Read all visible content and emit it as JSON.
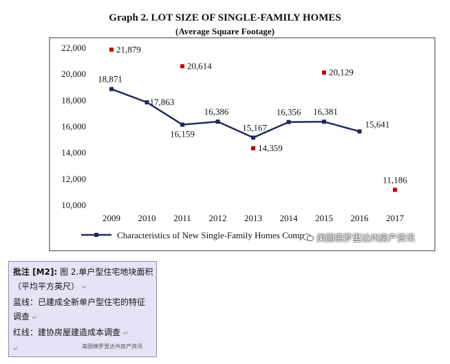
{
  "chart_data": {
    "type": "line",
    "title": "Graph 2. LOT SIZE OF SINGLE-FAMILY HOMES",
    "subtitle": "(Average Square Footage)",
    "categories": [
      "2009",
      "2010",
      "2011",
      "2012",
      "2013",
      "2014",
      "2015",
      "2016",
      "2017"
    ],
    "ylim": [
      10000,
      22000
    ],
    "yticks": [
      10000,
      12000,
      14000,
      16000,
      18000,
      20000,
      22000
    ],
    "ytick_labels": [
      "10,000",
      "12,000",
      "14,000",
      "16,000",
      "18,000",
      "20,000",
      "22,000"
    ],
    "grid": false,
    "legend_position": "bottom",
    "series": [
      {
        "name": "Characteristics of New Single-Family Homes Comp",
        "type": "line",
        "color": "#1f2a5e",
        "x": [
          "2009",
          "2010",
          "2011",
          "2012",
          "2013",
          "2014",
          "2015",
          "2016"
        ],
        "values": [
          18871,
          17863,
          16159,
          16386,
          15167,
          16356,
          16381,
          15641
        ],
        "labels": [
          "18,871",
          "17,863",
          "16,159",
          "16,386",
          "15,167",
          "16,356",
          "16,381",
          "15,641"
        ]
      },
      {
        "name": "",
        "type": "scatter",
        "color": "#c00000",
        "x": [
          "2009",
          "2011",
          "2013",
          "2015",
          "2017"
        ],
        "values": [
          21879,
          20614,
          14359,
          20129,
          11186
        ],
        "labels": [
          "21,879",
          "20,614",
          "14,359",
          "20,129",
          "11,186"
        ]
      }
    ]
  },
  "watermark": "美国佛罗里达州房产资讯",
  "note": {
    "label": "批注 [M2]:",
    "lines": [
      "图 2.单户型住宅地块面积",
      "（平均平方英尺）",
      "蓝线：已建成全新单户型住宅的特征",
      "调查",
      "红线：建协房屋建造成本调查"
    ],
    "watermark": "美国佛罗里达州房产资讯"
  }
}
